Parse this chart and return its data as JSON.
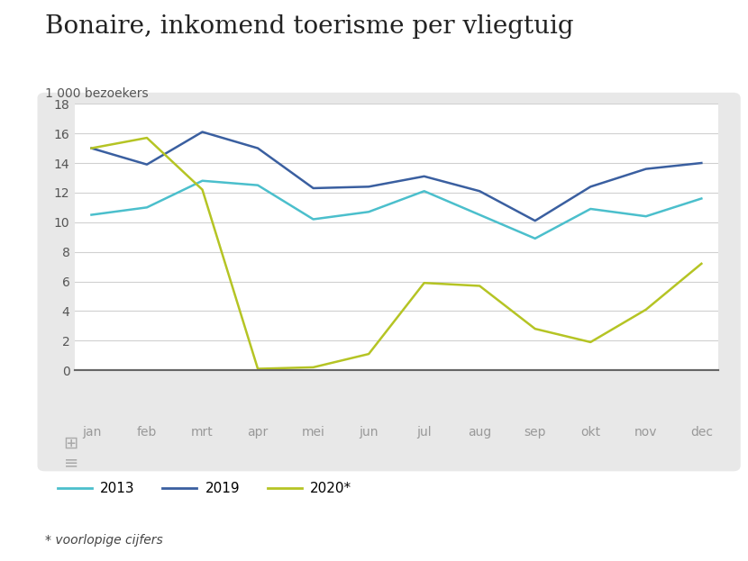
{
  "title": "Bonaire, inkomend toerisme per vliegtuig",
  "ylabel": "1 000 bezoekers",
  "months": [
    "jan",
    "feb",
    "mrt",
    "apr",
    "mei",
    "jun",
    "jul",
    "aug",
    "sep",
    "okt",
    "nov",
    "dec"
  ],
  "series_2013": [
    10.5,
    11.0,
    12.8,
    12.5,
    10.2,
    10.7,
    12.1,
    10.5,
    8.9,
    10.9,
    10.4,
    11.6
  ],
  "series_2019": [
    15.0,
    13.9,
    16.1,
    15.0,
    12.3,
    12.4,
    13.1,
    12.1,
    10.1,
    12.4,
    13.6,
    14.0
  ],
  "series_2020": [
    15.0,
    15.7,
    12.2,
    0.1,
    0.2,
    1.1,
    5.9,
    5.7,
    2.8,
    1.9,
    4.1,
    7.2
  ],
  "color_2013": "#4bbfcc",
  "color_2019": "#3a5fa0",
  "color_2020": "#b5c424",
  "ylim": [
    0,
    18
  ],
  "yticks": [
    0,
    2,
    4,
    6,
    8,
    10,
    12,
    14,
    16,
    18
  ],
  "legend_labels": [
    "2013",
    "2019",
    "2020*"
  ],
  "footnote": "* voorlopige cijfers",
  "fig_background": "#ffffff",
  "gray_box_color": "#e8e8e8",
  "plot_background": "#ffffff",
  "grid_color": "#d0d0d0",
  "axis_line_color": "#666666",
  "title_fontsize": 20,
  "ylabel_fontsize": 10,
  "tick_fontsize": 10,
  "legend_fontsize": 11
}
